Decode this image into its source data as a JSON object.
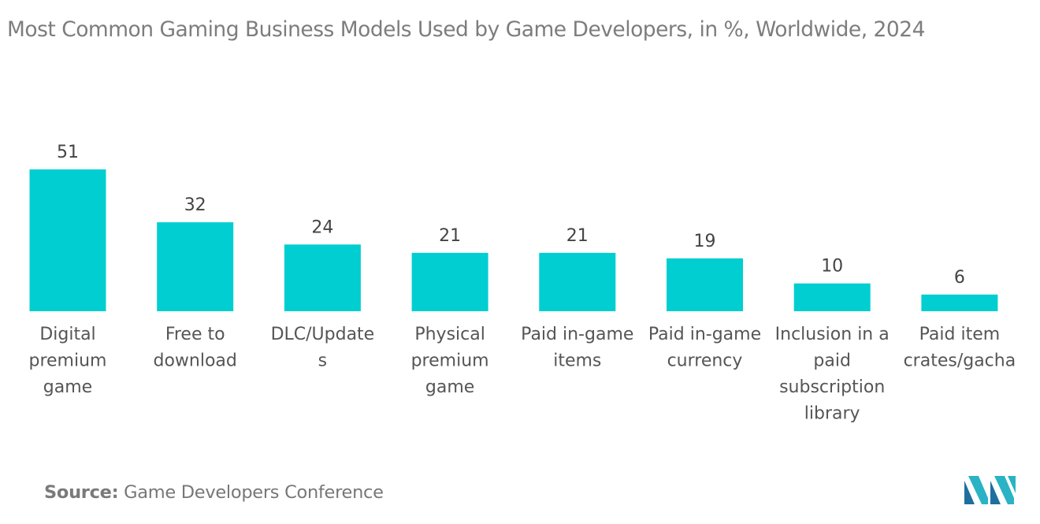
{
  "title": "Most Common Gaming Business Models Used by Game Developers, in %, Worldwide, 2024",
  "source": {
    "label": "Source:",
    "text": "Game Developers Conference"
  },
  "logo": {
    "icon": "mordor-intelligence-logo-icon",
    "colors": [
      "#1f6f9e",
      "#2ab3c4"
    ]
  },
  "colors": {
    "bar": "#00ced1"
  },
  "chart_data": {
    "type": "bar",
    "title": "Most Common Gaming Business Models Used by Game Developers, in %, Worldwide, 2024",
    "xlabel": "",
    "ylabel": "",
    "grid": false,
    "legend": "none",
    "categories": [
      "Digital premium game",
      "Free to download",
      "DLC/Updates",
      "Physical premium game",
      "Paid in-game items",
      "Paid in-game currency",
      "Inclusion in a paid subscription library",
      "Paid item crates/gacha"
    ],
    "category_label_lines": [
      [
        "Digital",
        "premium",
        "game"
      ],
      [
        "Free to",
        "download"
      ],
      [
        "DLC/Update",
        "s"
      ],
      [
        "Physical",
        "premium",
        "game"
      ],
      [
        "Paid in-game",
        "items"
      ],
      [
        "Paid in-game",
        "currency"
      ],
      [
        "Inclusion in a",
        "paid",
        "subscription",
        "library"
      ],
      [
        "Paid item",
        "crates/gacha"
      ]
    ],
    "values": [
      51,
      32,
      24,
      21,
      21,
      19,
      10,
      6
    ],
    "data_labels": [
      "51",
      "32",
      "24",
      "21",
      "21",
      "19",
      "10",
      "6"
    ],
    "ylim": [
      0,
      51
    ]
  }
}
